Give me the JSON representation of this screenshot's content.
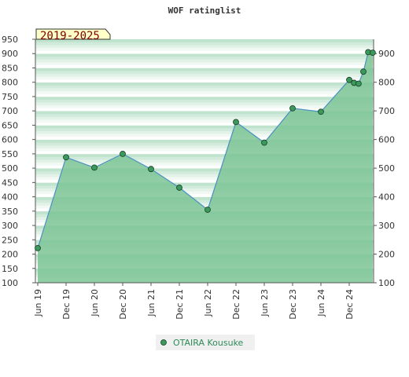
{
  "chart_data": {
    "type": "area",
    "title": "WOF ratinglist",
    "badge": "2019-2025",
    "xlabel": "",
    "ylabel": "",
    "ylim": [
      100,
      950
    ],
    "y_ticks_left": [
      100,
      150,
      200,
      250,
      300,
      350,
      400,
      450,
      500,
      550,
      600,
      650,
      700,
      750,
      800,
      850,
      900,
      950
    ],
    "y_ticks_right": [
      100,
      200,
      300,
      400,
      500,
      600,
      700,
      800,
      900
    ],
    "x_ticks": [
      "Jun 19",
      "Dec 19",
      "Jun 20",
      "Dec 20",
      "Jun 21",
      "Dec 21",
      "Jun 22",
      "Dec 22",
      "Jun 23",
      "Dec 23",
      "Jun 24",
      "Dec 24"
    ],
    "grid": true,
    "legend_position": "bottom-center",
    "series": [
      {
        "name": "OTAIRA Kousuke",
        "color": "#4a90c2",
        "fill": "#7cc495",
        "marker_color": "#3a9a5a",
        "points": [
          {
            "t": 0,
            "y": 221
          },
          {
            "t": 1,
            "y": 538
          },
          {
            "t": 2,
            "y": 502
          },
          {
            "t": 3,
            "y": 550
          },
          {
            "t": 4,
            "y": 497
          },
          {
            "t": 5,
            "y": 432
          },
          {
            "t": 6,
            "y": 355
          },
          {
            "t": 7,
            "y": 661
          },
          {
            "t": 8,
            "y": 589
          },
          {
            "t": 9,
            "y": 709
          },
          {
            "t": 10,
            "y": 697
          },
          {
            "t": 11,
            "y": 808
          },
          {
            "t": 11.17,
            "y": 798
          },
          {
            "t": 11.33,
            "y": 795
          },
          {
            "t": 11.5,
            "y": 837
          },
          {
            "t": 11.67,
            "y": 905
          },
          {
            "t": 11.83,
            "y": 903
          }
        ]
      }
    ]
  }
}
